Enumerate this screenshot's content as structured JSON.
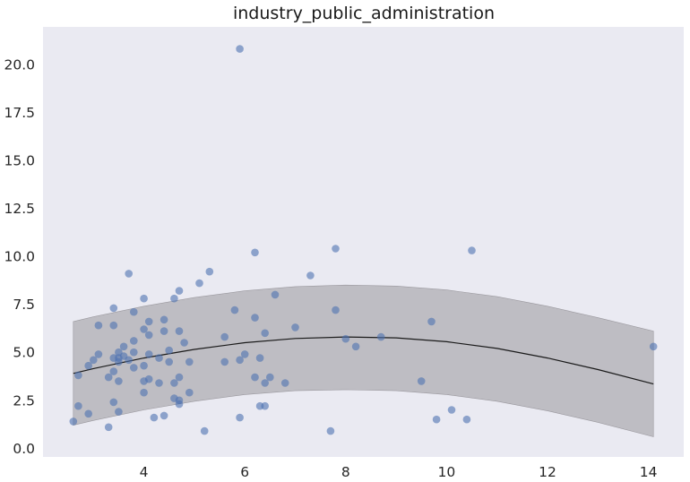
{
  "chart_data": {
    "type": "scatter",
    "title": "industry_public_administration",
    "xlabel": "",
    "ylabel": "",
    "xlim": [
      2.0,
      14.7
    ],
    "ylim": [
      -0.45,
      21.95
    ],
    "x_ticks": [
      4,
      6,
      8,
      10,
      12,
      14
    ],
    "x_tick_labels": [
      "4",
      "6",
      "8",
      "10",
      "12",
      "14"
    ],
    "y_ticks": [
      0.0,
      2.5,
      5.0,
      7.5,
      10.0,
      12.5,
      15.0,
      17.5,
      20.0
    ],
    "y_tick_labels": [
      "0.0",
      "2.5",
      "5.0",
      "7.5",
      "10.0",
      "12.5",
      "15.0",
      "17.5",
      "20.0"
    ],
    "grid": false,
    "legend": "none",
    "colors": {
      "background": "#eaeaf2",
      "points": "#4c72b0",
      "band": "#bcbac0",
      "band_edge": "#9a989e",
      "fit_line": "#1a1a1a"
    },
    "points": [
      {
        "x": 5.9,
        "y": 20.8
      },
      {
        "x": 6.2,
        "y": 10.2
      },
      {
        "x": 7.8,
        "y": 10.4
      },
      {
        "x": 10.5,
        "y": 10.3
      },
      {
        "x": 3.7,
        "y": 9.1
      },
      {
        "x": 5.3,
        "y": 9.2
      },
      {
        "x": 7.3,
        "y": 9.0
      },
      {
        "x": 5.1,
        "y": 8.6
      },
      {
        "x": 4.7,
        "y": 8.2
      },
      {
        "x": 6.6,
        "y": 8.0
      },
      {
        "x": 4.0,
        "y": 7.8
      },
      {
        "x": 4.6,
        "y": 7.8
      },
      {
        "x": 3.4,
        "y": 7.3
      },
      {
        "x": 3.8,
        "y": 7.1
      },
      {
        "x": 5.8,
        "y": 7.2
      },
      {
        "x": 7.8,
        "y": 7.2
      },
      {
        "x": 4.1,
        "y": 6.6
      },
      {
        "x": 4.4,
        "y": 6.7
      },
      {
        "x": 6.2,
        "y": 6.8
      },
      {
        "x": 9.7,
        "y": 6.6
      },
      {
        "x": 3.1,
        "y": 6.4
      },
      {
        "x": 3.4,
        "y": 6.4
      },
      {
        "x": 7.0,
        "y": 6.3
      },
      {
        "x": 4.0,
        "y": 6.2
      },
      {
        "x": 4.4,
        "y": 6.1
      },
      {
        "x": 4.7,
        "y": 6.1
      },
      {
        "x": 6.4,
        "y": 6.0
      },
      {
        "x": 4.1,
        "y": 5.9
      },
      {
        "x": 5.6,
        "y": 5.8
      },
      {
        "x": 8.7,
        "y": 5.8
      },
      {
        "x": 8.0,
        "y": 5.7
      },
      {
        "x": 3.8,
        "y": 5.6
      },
      {
        "x": 4.8,
        "y": 5.5
      },
      {
        "x": 3.6,
        "y": 5.3
      },
      {
        "x": 8.2,
        "y": 5.3
      },
      {
        "x": 14.1,
        "y": 5.3
      },
      {
        "x": 4.5,
        "y": 5.1
      },
      {
        "x": 3.5,
        "y": 5.0
      },
      {
        "x": 3.8,
        "y": 5.0
      },
      {
        "x": 3.1,
        "y": 4.9
      },
      {
        "x": 4.1,
        "y": 4.9
      },
      {
        "x": 6.0,
        "y": 4.9
      },
      {
        "x": 3.6,
        "y": 4.8
      },
      {
        "x": 3.4,
        "y": 4.7
      },
      {
        "x": 3.5,
        "y": 4.7
      },
      {
        "x": 4.3,
        "y": 4.7
      },
      {
        "x": 6.3,
        "y": 4.7
      },
      {
        "x": 3.0,
        "y": 4.6
      },
      {
        "x": 3.7,
        "y": 4.6
      },
      {
        "x": 5.9,
        "y": 4.6
      },
      {
        "x": 3.5,
        "y": 4.5
      },
      {
        "x": 4.5,
        "y": 4.5
      },
      {
        "x": 4.9,
        "y": 4.5
      },
      {
        "x": 5.6,
        "y": 4.5
      },
      {
        "x": 2.9,
        "y": 4.3
      },
      {
        "x": 4.0,
        "y": 4.3
      },
      {
        "x": 3.8,
        "y": 4.2
      },
      {
        "x": 3.4,
        "y": 4.0
      },
      {
        "x": 2.7,
        "y": 3.8
      },
      {
        "x": 3.3,
        "y": 3.7
      },
      {
        "x": 4.7,
        "y": 3.7
      },
      {
        "x": 6.2,
        "y": 3.7
      },
      {
        "x": 6.5,
        "y": 3.7
      },
      {
        "x": 3.5,
        "y": 3.5
      },
      {
        "x": 4.0,
        "y": 3.5
      },
      {
        "x": 4.1,
        "y": 3.6
      },
      {
        "x": 4.3,
        "y": 3.4
      },
      {
        "x": 4.6,
        "y": 3.4
      },
      {
        "x": 6.4,
        "y": 3.4
      },
      {
        "x": 6.8,
        "y": 3.4
      },
      {
        "x": 9.5,
        "y": 3.5
      },
      {
        "x": 4.0,
        "y": 2.9
      },
      {
        "x": 4.9,
        "y": 2.9
      },
      {
        "x": 4.6,
        "y": 2.6
      },
      {
        "x": 4.7,
        "y": 2.5
      },
      {
        "x": 3.4,
        "y": 2.4
      },
      {
        "x": 4.7,
        "y": 2.3
      },
      {
        "x": 2.7,
        "y": 2.2
      },
      {
        "x": 6.3,
        "y": 2.2
      },
      {
        "x": 6.4,
        "y": 2.2
      },
      {
        "x": 3.5,
        "y": 1.9
      },
      {
        "x": 2.9,
        "y": 1.8
      },
      {
        "x": 10.1,
        "y": 2.0
      },
      {
        "x": 4.2,
        "y": 1.6
      },
      {
        "x": 4.4,
        "y": 1.7
      },
      {
        "x": 5.9,
        "y": 1.6
      },
      {
        "x": 9.8,
        "y": 1.5
      },
      {
        "x": 10.4,
        "y": 1.5
      },
      {
        "x": 2.6,
        "y": 1.4
      },
      {
        "x": 3.3,
        "y": 1.1
      },
      {
        "x": 5.2,
        "y": 0.9
      },
      {
        "x": 7.7,
        "y": 0.9
      }
    ],
    "fit_line": {
      "x": [
        2.6,
        3.0,
        4.0,
        5.0,
        6.0,
        7.0,
        8.0,
        9.0,
        10.0,
        11.0,
        12.0,
        13.0,
        14.1
      ],
      "y": [
        3.9,
        4.15,
        4.7,
        5.15,
        5.5,
        5.72,
        5.8,
        5.75,
        5.55,
        5.2,
        4.7,
        4.1,
        3.35
      ]
    },
    "confidence_band": {
      "x": [
        2.6,
        3.0,
        4.0,
        5.0,
        6.0,
        7.0,
        8.0,
        9.0,
        10.0,
        11.0,
        12.0,
        13.0,
        14.1
      ],
      "lower": [
        1.2,
        1.45,
        2.0,
        2.45,
        2.8,
        3.0,
        3.05,
        3.0,
        2.8,
        2.45,
        1.95,
        1.35,
        0.6
      ],
      "upper": [
        6.6,
        6.85,
        7.4,
        7.85,
        8.2,
        8.42,
        8.5,
        8.45,
        8.25,
        7.9,
        7.4,
        6.8,
        6.1
      ]
    }
  }
}
